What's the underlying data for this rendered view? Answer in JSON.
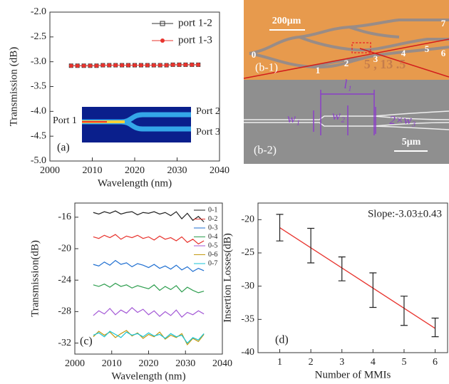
{
  "chart_data": [
    {
      "type": "line",
      "xlabel": "Wavelength (nm)",
      "ylabel": "Transmission (dB)",
      "panel_label": "(a)",
      "x": [
        2005,
        2006.5,
        2008,
        2009.5,
        2011,
        2012.5,
        2014,
        2015.5,
        2017,
        2018.5,
        2020,
        2021.5,
        2023,
        2024.5,
        2026,
        2027.5,
        2029,
        2030.5,
        2032,
        2033.5,
        2035
      ],
      "series": [
        {
          "name": "port 1-2",
          "color": "#333333",
          "marker": "square",
          "values": [
            -3.08,
            -3.08,
            -3.08,
            -3.08,
            -3.08,
            -3.07,
            -3.07,
            -3.07,
            -3.07,
            -3.07,
            -3.07,
            -3.07,
            -3.07,
            -3.07,
            -3.07,
            -3.07,
            -3.06,
            -3.06,
            -3.06,
            -3.06,
            -3.06
          ]
        },
        {
          "name": "port 1-3",
          "color": "#e8342e",
          "marker": "circle",
          "values": [
            -3.08,
            -3.08,
            -3.08,
            -3.08,
            -3.08,
            -3.07,
            -3.07,
            -3.07,
            -3.07,
            -3.07,
            -3.07,
            -3.07,
            -3.07,
            -3.07,
            -3.07,
            -3.07,
            -3.06,
            -3.06,
            -3.06,
            -3.06,
            -3.06
          ]
        }
      ],
      "xlim": [
        2000,
        2040
      ],
      "xticks": [
        2000,
        2010,
        2020,
        2030,
        2040
      ],
      "ylim": [
        -5,
        -2
      ],
      "yticks": [
        {
          "value": -2,
          "label": "-2.0"
        },
        -2.5,
        {
          "value": -3,
          "label": "-3.0"
        },
        -3.5,
        {
          "value": -4,
          "label": "-4.0"
        },
        -4.5,
        {
          "value": -5,
          "label": "-5.0"
        }
      ],
      "legend": "upper right",
      "inset_labels": [
        "Port 1",
        "Port 2",
        "Port 3"
      ]
    },
    {
      "type": "line",
      "xlabel": "Wavelength (nm)",
      "ylabel": "Transmission(dB)",
      "panel_label": "(c)",
      "x": [
        2005,
        2006.5,
        2008,
        2009.5,
        2011,
        2012.5,
        2014,
        2015.5,
        2017,
        2018.5,
        2020,
        2021.5,
        2023,
        2024.5,
        2026,
        2027.5,
        2029,
        2030.5,
        2032,
        2033.5,
        2035
      ],
      "series": [
        {
          "name": "0-1",
          "color": "#222222",
          "values": [
            -15.4,
            -15.6,
            -15.3,
            -15.5,
            -15.2,
            -15.6,
            -15.4,
            -15.3,
            -15.7,
            -15.4,
            -15.5,
            -15.3,
            -15.6,
            -15.4,
            -15.8,
            -15.3,
            -16.2,
            -15.5,
            -16.4,
            -15.9,
            -16.6
          ]
        },
        {
          "name": "0-2",
          "color": "#e8342e",
          "values": [
            -18.5,
            -18.7,
            -18.3,
            -18.6,
            -18.2,
            -18.8,
            -18.4,
            -18.6,
            -18.3,
            -18.7,
            -18.5,
            -18.9,
            -18.4,
            -18.8,
            -18.6,
            -19.0,
            -18.5,
            -19.2,
            -18.8,
            -19.4,
            -19.0
          ]
        },
        {
          "name": "0-3",
          "color": "#1f6fd1",
          "values": [
            -22.0,
            -22.2,
            -21.7,
            -22.1,
            -21.5,
            -22.0,
            -21.8,
            -22.3,
            -21.9,
            -22.1,
            -22.4,
            -22.0,
            -22.5,
            -22.2,
            -22.6,
            -22.1,
            -22.7,
            -22.3,
            -22.9,
            -22.5,
            -22.8
          ]
        },
        {
          "name": "0-4",
          "color": "#2e9e4f",
          "values": [
            -24.6,
            -24.8,
            -24.5,
            -24.9,
            -24.4,
            -24.8,
            -24.6,
            -25.0,
            -24.7,
            -24.9,
            -25.1,
            -24.6,
            -25.3,
            -24.8,
            -25.2,
            -24.7,
            -25.5,
            -24.9,
            -25.3,
            -25.6,
            -25.4
          ]
        },
        {
          "name": "0-5",
          "color": "#a45ad6",
          "values": [
            -28.5,
            -27.9,
            -28.3,
            -27.6,
            -28.4,
            -27.8,
            -28.2,
            -27.5,
            -28.1,
            -27.7,
            -28.4,
            -27.9,
            -28.6,
            -28.0,
            -28.5,
            -27.8,
            -28.7,
            -28.1,
            -28.4,
            -27.9,
            -28.3
          ]
        },
        {
          "name": "0-6",
          "color": "#c49a10",
          "values": [
            -31.2,
            -30.5,
            -31.0,
            -30.6,
            -31.3,
            -30.8,
            -30.4,
            -31.1,
            -30.7,
            -31.4,
            -30.9,
            -31.2,
            -30.6,
            -31.5,
            -31.0,
            -31.3,
            -30.8,
            -32.2,
            -31.4,
            -31.8,
            -30.9
          ]
        },
        {
          "name": "0-7",
          "color": "#17c3d4",
          "values": [
            -31.0,
            -30.7,
            -31.2,
            -30.5,
            -30.9,
            -31.3,
            -30.6,
            -31.0,
            -30.8,
            -31.2,
            -30.7,
            -31.1,
            -30.9,
            -31.4,
            -30.8,
            -31.2,
            -31.0,
            -32.0,
            -31.3,
            -31.6,
            -30.8
          ]
        }
      ],
      "xlim": [
        2000,
        2040
      ],
      "xticks": [
        2000,
        2010,
        2020,
        2030,
        2040
      ],
      "ylim": [
        -33.4,
        -14.2
      ],
      "yticks": [
        -16,
        -20,
        -24,
        -28,
        -32
      ],
      "legend": "right"
    },
    {
      "type": "errorbar",
      "xlabel": "Number of MMIs",
      "ylabel": "Insertion Losses(dB)",
      "panel_label": "(d)",
      "annotation": "Slope:-3.03±0.43",
      "x": [
        1,
        2,
        3,
        4,
        5,
        6
      ],
      "values": [
        -21.2,
        -23.9,
        -27.4,
        -30.6,
        -33.7,
        -36.2
      ],
      "errors": [
        2.0,
        2.6,
        1.8,
        2.6,
        2.2,
        1.4
      ],
      "color": "#222222",
      "fit": {
        "x": [
          1,
          6
        ],
        "values": [
          -21.2,
          -36.35
        ],
        "color": "#e8342e"
      },
      "xlim": [
        0.3,
        6.4
      ],
      "xticks": [
        1,
        2,
        3,
        4,
        5,
        6
      ],
      "ylim": [
        -40,
        -17.5
      ],
      "yticks": [
        -20,
        -25,
        -30,
        -35,
        -40
      ]
    }
  ],
  "photo_b1": {
    "scale_label": "200μm",
    "port_labels": [
      "0",
      "1",
      "2",
      "3",
      "4",
      "5",
      "6",
      "7"
    ],
    "overlay_text": "5 , 13 .5",
    "panel_label": "(b-1)"
  },
  "sem_b2": {
    "dimension_labels": [
      "l₁",
      "w₁",
      "w₂",
      "2×w₃"
    ],
    "scale_label": "5μm",
    "panel_label": "(b-2)"
  }
}
